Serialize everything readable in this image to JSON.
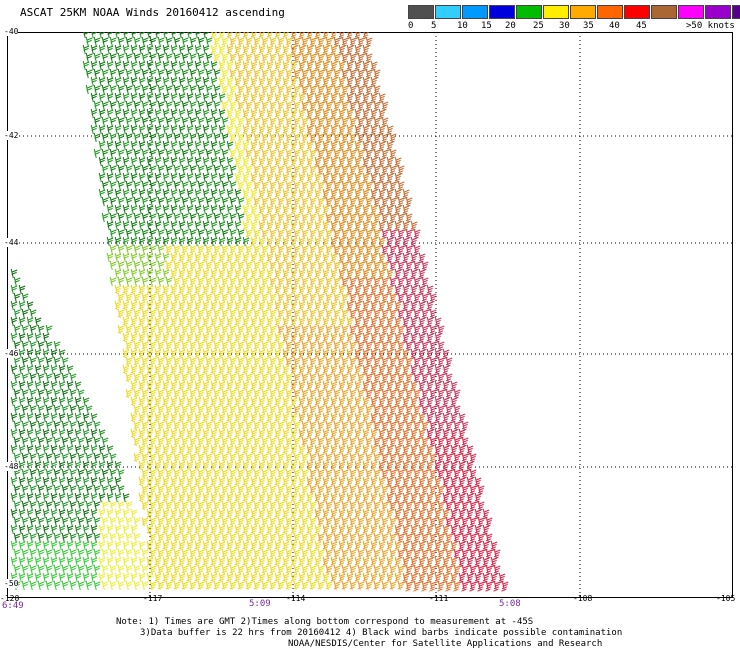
{
  "title": "ASCAT 25KM NOAA Winds 20160412 ascending",
  "scale": {
    "colors": [
      "#505050",
      "#33ccff",
      "#0099ff",
      "#0000dd",
      "#00bb00",
      "#ffee00",
      "#ffaa00",
      "#ff6600",
      "#ff0000",
      "#aa6633",
      "#ff00ff",
      "#9900cc",
      "#550088"
    ],
    "labels": [
      "0",
      "5",
      "10",
      "15",
      "20",
      "25",
      "30",
      "35",
      "40",
      "45",
      ">50 knots"
    ]
  },
  "lat_labels": [
    "-40",
    "-42",
    "-44",
    "-46",
    "-48",
    "-50"
  ],
  "lon_labels": [
    "-120",
    "-117",
    "-114",
    "-111",
    "-108",
    "-105"
  ],
  "times": [
    "6:49",
    "5:09",
    "5:08"
  ],
  "notes": [
    "Note: 1) Times are GMT 2)Times along bottom correspond to measurement at -45S",
    "3)Data buffer is 22 hrs from 20160412 4) Black wind barbs indicate possible contamination",
    "NOAA/NESDIS/Center for Satellite Applications and Research"
  ]
}
